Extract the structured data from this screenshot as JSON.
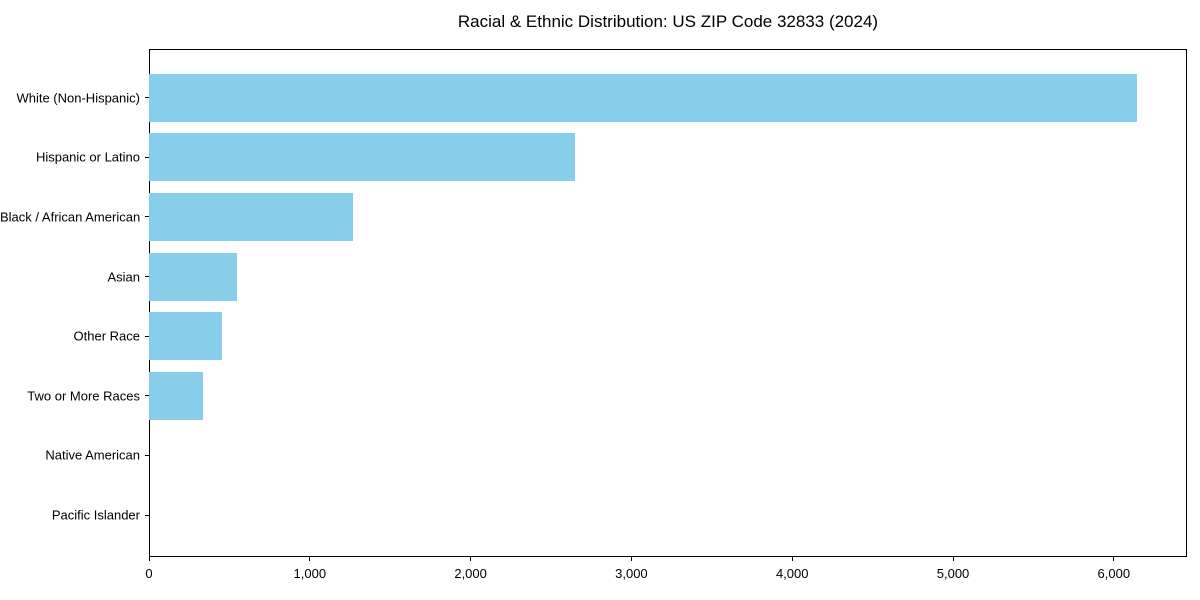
{
  "chart_data": {
    "type": "bar",
    "orientation": "horizontal",
    "title": "Racial & Ethnic Distribution: US ZIP Code 32833 (2024)",
    "categories": [
      "White (Non-Hispanic)",
      "Hispanic or Latino",
      "Black / African American",
      "Asian",
      "Other Race",
      "Two or More Races",
      "Native American",
      "Pacific Islander"
    ],
    "values": [
      6145,
      2650,
      1270,
      545,
      455,
      335,
      0,
      0
    ],
    "xlabel": "",
    "ylabel": "",
    "xlim": [
      0,
      6455
    ],
    "x_ticks": [
      0,
      1000,
      2000,
      3000,
      4000,
      5000,
      6000
    ],
    "x_tick_labels": [
      "0",
      "1,000",
      "2,000",
      "3,000",
      "4,000",
      "5,000",
      "6,000"
    ],
    "bar_color": "#87CEEB",
    "background_color": "#ffffff",
    "frame_color": "#000000",
    "grid": false,
    "legend": null
  }
}
